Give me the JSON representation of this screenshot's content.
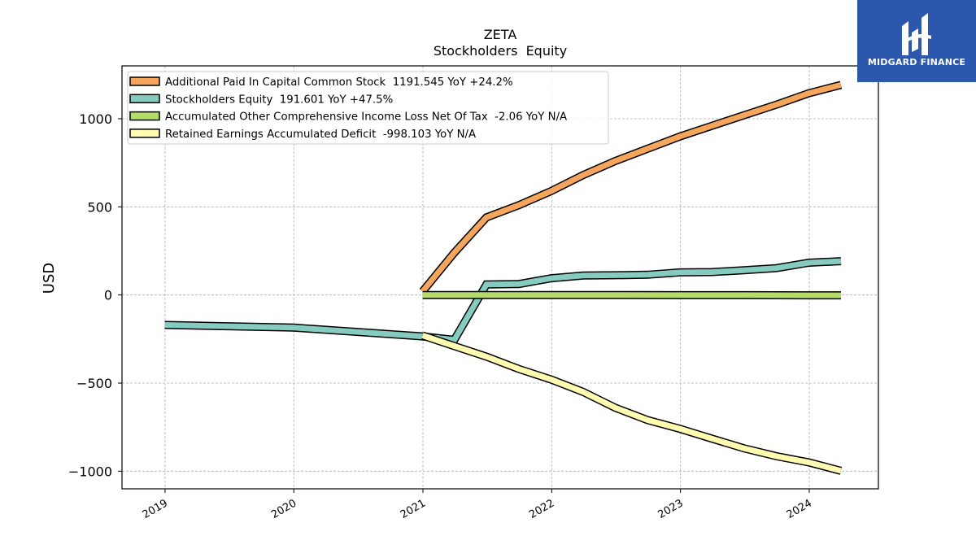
{
  "logo": {
    "text": "MIDGARD FINANCE"
  },
  "chart_data": {
    "type": "line",
    "title": "ZETA",
    "subtitle": "Stockholders  Equity",
    "ylabel": "USD",
    "xlabel": "",
    "ylim": [
      -1100,
      1300
    ],
    "xlim": [
      "2018-09-01",
      "2024-07-15"
    ],
    "yticks": [
      1000,
      500,
      0,
      -500,
      -1000
    ],
    "ytick_labels": [
      "1000",
      "500",
      "0",
      "−500",
      "−1000"
    ],
    "xticks": [
      "2019-01-01",
      "2020-01-01",
      "2021-01-01",
      "2022-01-01",
      "2023-01-01",
      "2024-01-01"
    ],
    "xtick_labels": [
      "2019",
      "2020",
      "2021",
      "2022",
      "2023",
      "2024"
    ],
    "grid": true,
    "legend_position": "top-left",
    "series": [
      {
        "name": "Additional Paid In Capital Common Stock  1191.545 YoY +24.2%",
        "color": "#f5a55c",
        "points": [
          [
            "2020-12-31",
            20
          ],
          [
            "2021-03-31",
            240
          ],
          [
            "2021-06-30",
            440
          ],
          [
            "2021-09-30",
            510
          ],
          [
            "2021-12-31",
            590
          ],
          [
            "2022-03-31",
            680
          ],
          [
            "2022-06-30",
            760
          ],
          [
            "2022-09-30",
            830
          ],
          [
            "2022-12-31",
            900
          ],
          [
            "2023-03-31",
            960
          ],
          [
            "2023-06-30",
            1020
          ],
          [
            "2023-09-30",
            1080
          ],
          [
            "2023-12-31",
            1145
          ],
          [
            "2024-03-31",
            1192
          ]
        ]
      },
      {
        "name": "Stockholders Equity  191.601 YoY +47.5%",
        "color": "#86cbbf",
        "points": [
          [
            "2018-12-31",
            -170
          ],
          [
            "2019-12-31",
            -185
          ],
          [
            "2020-12-31",
            -235
          ],
          [
            "2021-03-31",
            -255
          ],
          [
            "2021-06-30",
            60
          ],
          [
            "2021-09-30",
            62
          ],
          [
            "2021-12-31",
            95
          ],
          [
            "2022-03-31",
            110
          ],
          [
            "2022-06-30",
            112
          ],
          [
            "2022-09-30",
            115
          ],
          [
            "2022-12-31",
            128
          ],
          [
            "2023-03-31",
            130
          ],
          [
            "2023-06-30",
            140
          ],
          [
            "2023-09-30",
            152
          ],
          [
            "2023-12-31",
            183
          ],
          [
            "2024-03-31",
            192
          ]
        ]
      },
      {
        "name": "Accumulated Other Comprehensive Income Loss Net Of Tax  -2.06 YoY N/A",
        "color": "#b5dc6a",
        "points": [
          [
            "2020-12-31",
            0
          ],
          [
            "2021-06-30",
            0
          ],
          [
            "2021-12-31",
            0
          ],
          [
            "2022-06-30",
            0
          ],
          [
            "2022-12-31",
            -1
          ],
          [
            "2023-06-30",
            -1
          ],
          [
            "2023-12-31",
            -2
          ],
          [
            "2024-03-31",
            -2.06
          ]
        ]
      },
      {
        "name": "Retained Earnings Accumulated Deficit  -998.103 YoY N/A",
        "color": "#fffbb0",
        "points": [
          [
            "2020-12-31",
            -230
          ],
          [
            "2021-03-31",
            -290
          ],
          [
            "2021-06-30",
            -350
          ],
          [
            "2021-09-30",
            -420
          ],
          [
            "2021-12-31",
            -480
          ],
          [
            "2022-03-31",
            -550
          ],
          [
            "2022-06-30",
            -640
          ],
          [
            "2022-09-30",
            -710
          ],
          [
            "2022-12-31",
            -760
          ],
          [
            "2023-03-31",
            -815
          ],
          [
            "2023-06-30",
            -870
          ],
          [
            "2023-09-30",
            -915
          ],
          [
            "2023-12-31",
            -950
          ],
          [
            "2024-03-31",
            -998
          ]
        ]
      }
    ]
  }
}
